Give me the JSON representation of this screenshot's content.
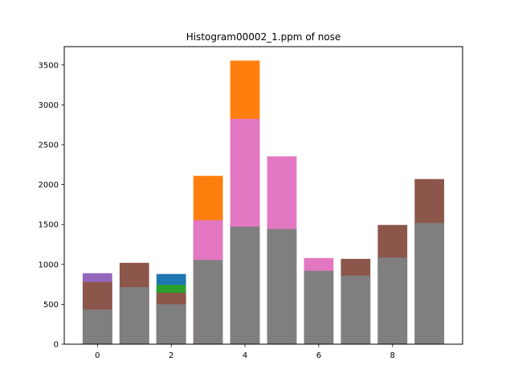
{
  "chart_data": {
    "type": "bar",
    "title": "Histogram00002_1.ppm of nose",
    "xlabel": "",
    "ylabel": "",
    "x": [
      0,
      1,
      2,
      3,
      4,
      5,
      6,
      7,
      8,
      9
    ],
    "xlim": [
      -0.9,
      9.9
    ],
    "ylim": [
      0,
      3730
    ],
    "x_ticks": [
      0,
      2,
      4,
      6,
      8
    ],
    "y_ticks": [
      0,
      500,
      1000,
      1500,
      2000,
      2500,
      3000,
      3500
    ],
    "grid": false,
    "legend": "none",
    "overlay": true,
    "series": [
      {
        "color": "#1f77b4",
        "values": [
          null,
          null,
          880,
          null,
          null,
          null,
          null,
          null,
          null,
          null
        ]
      },
      {
        "color": "#ff7f0e",
        "values": [
          null,
          null,
          null,
          2110,
          3555,
          null,
          null,
          null,
          null,
          null
        ]
      },
      {
        "color": "#2ca02c",
        "values": [
          null,
          null,
          745,
          null,
          null,
          null,
          null,
          null,
          null,
          null
        ]
      },
      {
        "color": "#9467bd",
        "values": [
          890,
          null,
          null,
          null,
          null,
          null,
          null,
          null,
          null,
          null
        ]
      },
      {
        "color": "#e377c2",
        "values": [
          null,
          730,
          null,
          1555,
          2825,
          2355,
          1080,
          null,
          null,
          null
        ]
      },
      {
        "color": "#8c564b",
        "values": [
          780,
          1020,
          645,
          null,
          null,
          null,
          null,
          1070,
          1495,
          2070
        ]
      },
      {
        "color": "#7f7f7f",
        "values": [
          435,
          715,
          500,
          1055,
          1475,
          1445,
          920,
          860,
          1085,
          1520
        ]
      }
    ]
  }
}
